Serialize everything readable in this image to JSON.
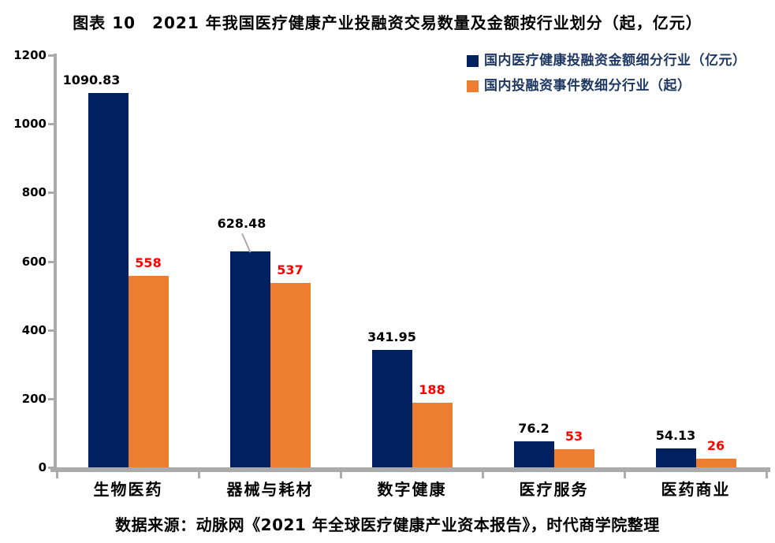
{
  "figure": {
    "title": "图表 10　2021 年我国医疗健康产业投融资交易数量及金额按行业划分（起，亿元）",
    "source": "数据来源：动脉网《2021 年全球医疗健康产业资本报告》，时代商学院整理"
  },
  "chart_data": {
    "type": "bar",
    "title": "图表 10　2021 年我国医疗健康产业投融资交易数量及金额按行业划分（起，亿元）",
    "categories": [
      "生物医药",
      "器械与耗材",
      "数字健康",
      "医疗服务",
      "医药商业"
    ],
    "series": [
      {
        "name": "国内医疗健康投融资金额细分行业（亿元）",
        "color": "#002060",
        "label_color": "#000000",
        "values": [
          1090.83,
          628.48,
          341.95,
          76.2,
          54.13
        ]
      },
      {
        "name": "国内投融资事件数细分行业（起）",
        "color": "#ED7D31",
        "label_color": "#FF0000",
        "values": [
          558,
          537,
          188,
          53,
          26
        ]
      }
    ],
    "ylim": [
      0,
      1200
    ],
    "ytick_step": 200,
    "grid": false,
    "legend_position": "top-right",
    "axis_color": "#ABABAB",
    "xlabel": "",
    "ylabel": ""
  }
}
